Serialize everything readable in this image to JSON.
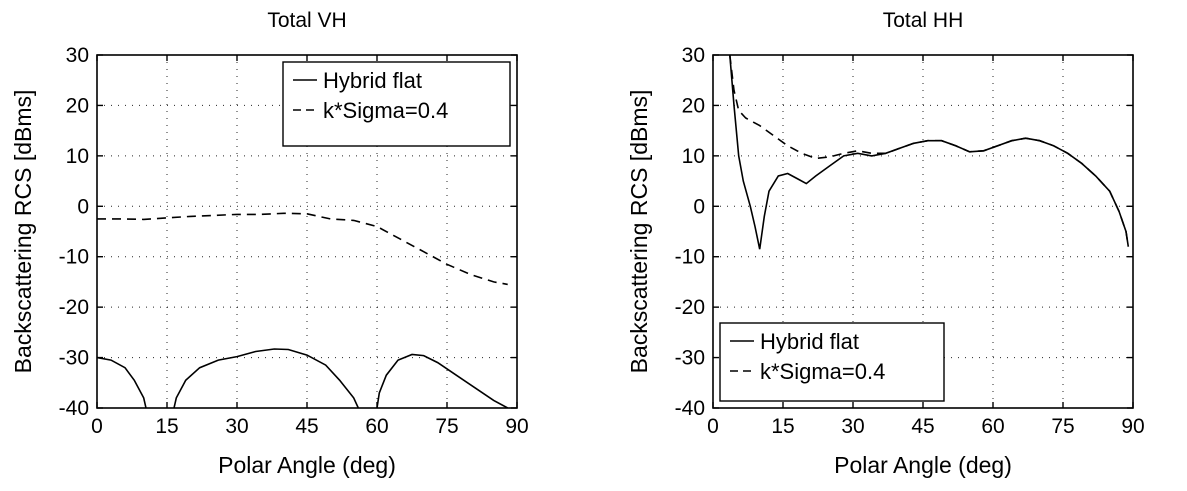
{
  "chart_data": [
    {
      "type": "line",
      "title": "Total VH",
      "xlabel": "Polar Angle (deg)",
      "ylabel": "Backscattering RCS [dBms]",
      "xlim": [
        0,
        90
      ],
      "ylim": [
        -40,
        30
      ],
      "xticks": [
        0,
        15,
        30,
        45,
        60,
        75,
        90
      ],
      "yticks": [
        30,
        20,
        10,
        0,
        -10,
        -20,
        -30,
        -40
      ],
      "grid": true,
      "legend_position": "top-right",
      "series": [
        {
          "name": "Hybrid flat",
          "style": "solid",
          "segments": [
            [
              [
                0,
                -30
              ],
              [
                3,
                -30.5
              ],
              [
                6,
                -32
              ],
              [
                8,
                -34.5
              ],
              [
                10,
                -38
              ],
              [
                10.5,
                -40
              ]
            ],
            [
              [
                16.5,
                -40
              ],
              [
                17,
                -38
              ],
              [
                19,
                -34.5
              ],
              [
                22,
                -32
              ],
              [
                26,
                -30.5
              ],
              [
                30,
                -29.8
              ],
              [
                34,
                -28.8
              ],
              [
                38,
                -28.3
              ],
              [
                41,
                -28.4
              ],
              [
                45,
                -29.5
              ],
              [
                49,
                -31.5
              ],
              [
                52,
                -34.5
              ],
              [
                55,
                -38
              ],
              [
                56,
                -40
              ]
            ],
            [
              [
                60,
                -40
              ],
              [
                60.5,
                -37
              ],
              [
                62,
                -33.5
              ],
              [
                64.5,
                -30.5
              ],
              [
                67.5,
                -29.4
              ],
              [
                70,
                -29.6
              ],
              [
                73,
                -31
              ],
              [
                77,
                -33.5
              ],
              [
                81,
                -36
              ],
              [
                85,
                -38.5
              ],
              [
                88,
                -40
              ]
            ]
          ]
        },
        {
          "name": "k*Sigma=0.4",
          "style": "dashed",
          "segments": [
            [
              [
                0,
                -2.5
              ],
              [
                5,
                -2.5
              ],
              [
                10,
                -2.6
              ],
              [
                15,
                -2.3
              ],
              [
                20,
                -2
              ],
              [
                25,
                -1.8
              ],
              [
                30,
                -1.6
              ],
              [
                35,
                -1.6
              ],
              [
                40,
                -1.4
              ],
              [
                45,
                -1.5
              ],
              [
                50,
                -2.5
              ],
              [
                55,
                -2.8
              ],
              [
                60,
                -4
              ],
              [
                65,
                -6.5
              ],
              [
                70,
                -9
              ],
              [
                75,
                -11.5
              ],
              [
                80,
                -13.5
              ],
              [
                85,
                -15
              ],
              [
                88,
                -15.5
              ]
            ]
          ]
        }
      ]
    },
    {
      "type": "line",
      "title": "Total HH",
      "xlabel": "Polar Angle (deg)",
      "ylabel": "Backscattering RCS [dBms]",
      "xlim": [
        0,
        90
      ],
      "ylim": [
        -40,
        30
      ],
      "xticks": [
        0,
        15,
        30,
        45,
        60,
        75,
        90
      ],
      "yticks": [
        30,
        20,
        10,
        0,
        -10,
        -20,
        -30,
        -40
      ],
      "grid": true,
      "legend_position": "bottom-left",
      "series": [
        {
          "name": "Hybrid flat",
          "style": "solid",
          "segments": [
            [
              [
                3.6,
                30
              ],
              [
                4.5,
                20
              ],
              [
                5.5,
                10
              ],
              [
                6.5,
                5
              ],
              [
                8,
                0
              ],
              [
                9,
                -4
              ],
              [
                10,
                -8.5
              ],
              [
                11,
                -2
              ],
              [
                12,
                3
              ],
              [
                14,
                6
              ],
              [
                16,
                6.5
              ],
              [
                18,
                5.5
              ],
              [
                20,
                4.5
              ],
              [
                22,
                6
              ],
              [
                25,
                8
              ],
              [
                28,
                10
              ],
              [
                31,
                10.5
              ],
              [
                34,
                10
              ],
              [
                37,
                10.5
              ],
              [
                40,
                11.5
              ],
              [
                43,
                12.5
              ],
              [
                46,
                13
              ],
              [
                49,
                13
              ],
              [
                52,
                12
              ],
              [
                55,
                10.8
              ],
              [
                58,
                11
              ],
              [
                61,
                12
              ],
              [
                64,
                13
              ],
              [
                67,
                13.5
              ],
              [
                70,
                13
              ],
              [
                73,
                12
              ],
              [
                76,
                10.5
              ],
              [
                79,
                8.5
              ],
              [
                82,
                6
              ],
              [
                85,
                3
              ],
              [
                87,
                -1
              ],
              [
                88.5,
                -5
              ],
              [
                89,
                -8
              ]
            ]
          ]
        },
        {
          "name": "k*Sigma=0.4",
          "style": "dashed",
          "segments": [
            [
              [
                3.6,
                30
              ],
              [
                4.5,
                23
              ],
              [
                5.5,
                19
              ],
              [
                7,
                17.5
              ],
              [
                10,
                16
              ],
              [
                13,
                14
              ],
              [
                16,
                12
              ],
              [
                19,
                10.5
              ],
              [
                22,
                9.5
              ],
              [
                25,
                9.8
              ],
              [
                28,
                10.5
              ],
              [
                31,
                11
              ],
              [
                34,
                10.5
              ],
              [
                37,
                10.5
              ],
              [
                40,
                11.5
              ],
              [
                43,
                12.5
              ],
              [
                46,
                13
              ],
              [
                49,
                13
              ],
              [
                52,
                12
              ],
              [
                55,
                10.8
              ],
              [
                58,
                11
              ],
              [
                61,
                12
              ],
              [
                64,
                13
              ],
              [
                67,
                13.5
              ],
              [
                70,
                13
              ],
              [
                73,
                12
              ],
              [
                76,
                10.5
              ],
              [
                79,
                8.5
              ],
              [
                82,
                6
              ],
              [
                85,
                3
              ],
              [
                87,
                -1
              ],
              [
                88.5,
                -5
              ],
              [
                89,
                -8
              ]
            ]
          ]
        }
      ]
    }
  ]
}
